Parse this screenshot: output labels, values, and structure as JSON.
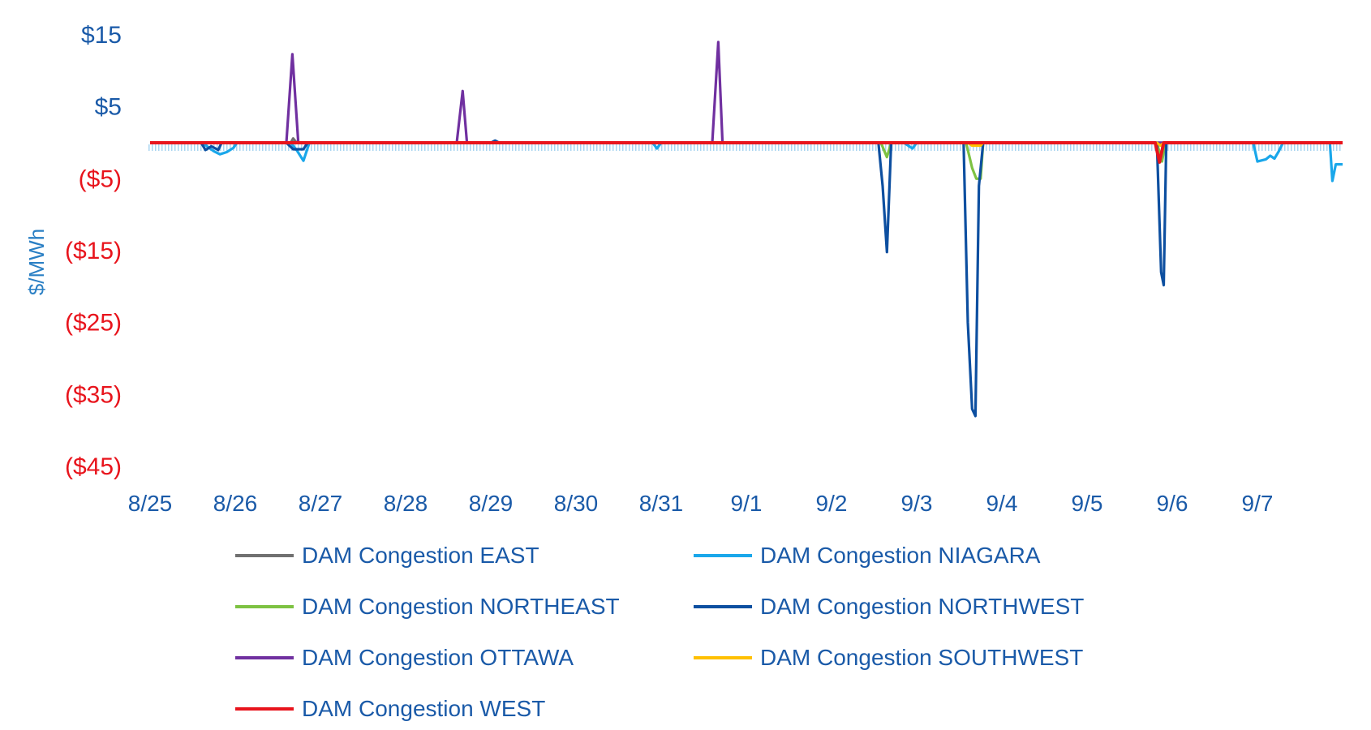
{
  "chart_data": {
    "type": "line",
    "ylabel": "$/MWh",
    "ylim": [
      -45,
      15
    ],
    "y_ticks": [
      {
        "value": 15,
        "label": "$15",
        "color": "#1a5aa8"
      },
      {
        "value": 5,
        "label": "$5",
        "color": "#1a5aa8"
      },
      {
        "value": -5,
        "label": "($5)",
        "color": "#e8141c"
      },
      {
        "value": -15,
        "label": "($15)",
        "color": "#e8141c"
      },
      {
        "value": -25,
        "label": "($25)",
        "color": "#e8141c"
      },
      {
        "value": -35,
        "label": "($35)",
        "color": "#e8141c"
      },
      {
        "value": -45,
        "label": "($45)",
        "color": "#e8141c"
      }
    ],
    "x_ticks": [
      "8/25",
      "8/26",
      "8/27",
      "8/28",
      "8/29",
      "8/30",
      "8/31",
      "9/1",
      "9/2",
      "9/3",
      "9/4",
      "9/5",
      "9/6",
      "9/7"
    ],
    "xlim": [
      0,
      14
    ],
    "series": [
      {
        "name": "DAM Congestion EAST",
        "color": "#707070",
        "points": [
          [
            0,
            0
          ],
          [
            1.65,
            0
          ],
          [
            1.68,
            0.6
          ],
          [
            1.72,
            0
          ],
          [
            14,
            0
          ]
        ]
      },
      {
        "name": "DAM Congestion NIAGARA",
        "color": "#1aa7ea",
        "points": [
          [
            0,
            0
          ],
          [
            0.62,
            0
          ],
          [
            0.68,
            -0.6
          ],
          [
            0.75,
            -1.2
          ],
          [
            0.82,
            -1.6
          ],
          [
            0.9,
            -1.3
          ],
          [
            0.98,
            -0.7
          ],
          [
            1.02,
            0
          ],
          [
            1.65,
            0
          ],
          [
            1.72,
            -1.0
          ],
          [
            1.8,
            -2.5
          ],
          [
            1.87,
            0
          ],
          [
            5.9,
            0
          ],
          [
            5.95,
            -0.8
          ],
          [
            6.0,
            0
          ],
          [
            8.85,
            0
          ],
          [
            8.95,
            -0.8
          ],
          [
            9.0,
            0
          ],
          [
            12.95,
            0
          ],
          [
            13.0,
            -2.6
          ],
          [
            13.1,
            -2.3
          ],
          [
            13.15,
            -1.8
          ],
          [
            13.2,
            -2.2
          ],
          [
            13.25,
            -1.2
          ],
          [
            13.3,
            0
          ],
          [
            13.85,
            0
          ],
          [
            13.88,
            -5.3
          ],
          [
            13.92,
            -3.0
          ],
          [
            14.0,
            -3.0
          ]
        ]
      },
      {
        "name": "DAM Congestion NORTHEAST",
        "color": "#7dc242",
        "points": [
          [
            0,
            0
          ],
          [
            8.58,
            0
          ],
          [
            8.65,
            -2.0
          ],
          [
            8.7,
            0
          ],
          [
            9.58,
            0
          ],
          [
            9.65,
            -3.5
          ],
          [
            9.7,
            -5.0
          ],
          [
            9.75,
            -5.0
          ],
          [
            9.78,
            0
          ],
          [
            11.82,
            0
          ],
          [
            11.88,
            -2.6
          ],
          [
            11.92,
            0
          ],
          [
            14,
            0
          ]
        ]
      },
      {
        "name": "DAM Congestion NORTHWEST",
        "color": "#0d4fa0",
        "points": [
          [
            0,
            0
          ],
          [
            0.6,
            0
          ],
          [
            0.65,
            -1.0
          ],
          [
            0.72,
            -0.5
          ],
          [
            0.8,
            -1.0
          ],
          [
            0.84,
            0
          ],
          [
            1.6,
            0
          ],
          [
            1.68,
            -0.9
          ],
          [
            1.8,
            -0.9
          ],
          [
            1.85,
            0
          ],
          [
            4.0,
            0
          ],
          [
            4.05,
            0.3
          ],
          [
            4.1,
            0
          ],
          [
            8.55,
            0
          ],
          [
            8.6,
            -6.0
          ],
          [
            8.65,
            -15.2
          ],
          [
            8.7,
            0
          ],
          [
            9.55,
            0
          ],
          [
            9.6,
            -25.0
          ],
          [
            9.65,
            -37.0
          ],
          [
            9.69,
            -38.0
          ],
          [
            9.73,
            -6.0
          ],
          [
            9.78,
            0
          ],
          [
            11.82,
            0
          ],
          [
            11.87,
            -18.0
          ],
          [
            11.9,
            -19.8
          ],
          [
            11.93,
            0
          ],
          [
            14,
            0
          ]
        ]
      },
      {
        "name": "DAM Congestion OTTAWA",
        "color": "#7030a0",
        "points": [
          [
            0,
            0
          ],
          [
            1.6,
            0
          ],
          [
            1.67,
            12.3
          ],
          [
            1.74,
            0
          ],
          [
            3.6,
            0
          ],
          [
            3.67,
            7.2
          ],
          [
            3.72,
            0
          ],
          [
            6.6,
            0
          ],
          [
            6.67,
            14.0
          ],
          [
            6.72,
            0
          ],
          [
            14,
            0
          ]
        ]
      },
      {
        "name": "DAM Congestion SOUTHWEST",
        "color": "#ffc000",
        "points": [
          [
            0,
            0
          ],
          [
            9.6,
            0
          ],
          [
            9.65,
            -0.4
          ],
          [
            9.75,
            -0.4
          ],
          [
            9.78,
            0
          ],
          [
            11.82,
            0
          ],
          [
            11.86,
            -0.4
          ],
          [
            11.9,
            0
          ],
          [
            14,
            0
          ]
        ]
      },
      {
        "name": "DAM Congestion WEST",
        "color": "#e8141c",
        "points": [
          [
            0,
            0
          ],
          [
            11.8,
            0
          ],
          [
            11.85,
            -2.7
          ],
          [
            11.9,
            0
          ],
          [
            14,
            0
          ]
        ]
      }
    ]
  }
}
